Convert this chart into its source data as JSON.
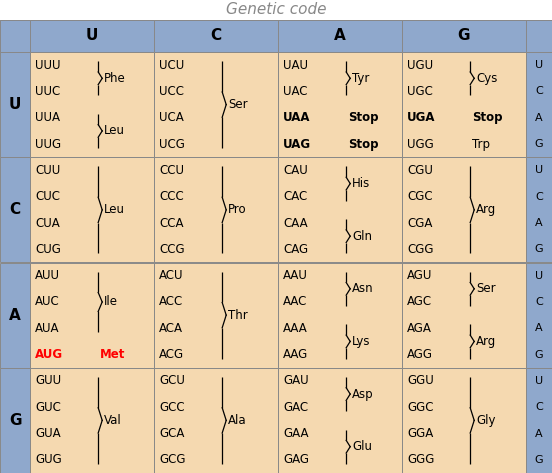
{
  "title": "Genetic code",
  "title_color": "#888888",
  "title_fontsize": 11,
  "header_bg": "#8fa8cc",
  "cell_bg": "#f5d9b0",
  "border_color": "#888888",
  "col_headers": [
    "U",
    "C",
    "A",
    "G"
  ],
  "row_headers": [
    "U",
    "C",
    "A",
    "G"
  ],
  "right_letters": [
    "U",
    "C",
    "A",
    "G"
  ],
  "cells": [
    [
      {
        "lines": [
          [
            "UUU",
            "}",
            "Phe"
          ],
          [
            "UUC",
            "}",
            ""
          ],
          [
            "UUA",
            "}",
            "Leu"
          ],
          [
            "UUG",
            "}",
            ""
          ]
        ],
        "braces": [
          [
            0,
            1,
            "Phe"
          ],
          [
            2,
            3,
            "Leu"
          ]
        ]
      },
      {
        "lines": [
          [
            "UCU",
            "}",
            ""
          ],
          [
            "UCC",
            "}",
            ""
          ],
          [
            "UCA",
            "}",
            "Ser"
          ],
          [
            "UCG",
            "}",
            ""
          ]
        ],
        "braces": [
          [
            0,
            3,
            "Ser"
          ]
        ]
      },
      {
        "lines": [
          [
            "UAU",
            "}",
            "Tyr"
          ],
          [
            "UAC",
            "}",
            ""
          ],
          [
            "UAA",
            "",
            "Stop"
          ],
          [
            "UAG",
            "",
            "Stop"
          ]
        ],
        "braces": [
          [
            0,
            1,
            "Tyr"
          ]
        ],
        "bold_lines": [
          2,
          3
        ],
        "stop_lines": [
          2,
          3
        ]
      },
      {
        "lines": [
          [
            "UGU",
            "}",
            "Cys"
          ],
          [
            "UGC",
            "}",
            ""
          ],
          [
            "UGA",
            "",
            "Stop"
          ],
          [
            "UGG",
            "",
            "Trp"
          ]
        ],
        "braces": [
          [
            0,
            1,
            "Cys"
          ]
        ],
        "bold_lines": [
          2
        ],
        "uga_stop": true
      }
    ],
    [
      {
        "lines": [
          [
            "CUU",
            "}",
            ""
          ],
          [
            "CUC",
            "}",
            ""
          ],
          [
            "CUA",
            "}",
            "Leu"
          ],
          [
            "CUG",
            "}",
            ""
          ]
        ],
        "braces": [
          [
            0,
            3,
            "Leu"
          ]
        ]
      },
      {
        "lines": [
          [
            "CCU",
            "}",
            ""
          ],
          [
            "CCC",
            "}",
            ""
          ],
          [
            "CCA",
            "}",
            "Pro"
          ],
          [
            "CCG",
            "}",
            ""
          ]
        ],
        "braces": [
          [
            0,
            3,
            "Pro"
          ]
        ]
      },
      {
        "lines": [
          [
            "CAU",
            "}",
            "His"
          ],
          [
            "CAC",
            "}",
            ""
          ],
          [
            "CAA",
            "}",
            "Gln"
          ],
          [
            "CAG",
            "}",
            ""
          ]
        ],
        "braces": [
          [
            0,
            1,
            "His"
          ],
          [
            2,
            3,
            "Gln"
          ]
        ]
      },
      {
        "lines": [
          [
            "CGU",
            "}",
            ""
          ],
          [
            "CGC",
            "}",
            ""
          ],
          [
            "CGA",
            "}",
            "Arg"
          ],
          [
            "CGG",
            "}",
            ""
          ]
        ],
        "braces": [
          [
            0,
            3,
            "Arg"
          ]
        ]
      }
    ],
    [
      {
        "lines": [
          [
            "AUU",
            "}",
            ""
          ],
          [
            "AUC",
            "}",
            "Ile"
          ],
          [
            "AUA",
            "}",
            ""
          ],
          [
            "AUG",
            "",
            "Met"
          ]
        ],
        "braces": [
          [
            0,
            2,
            "Ile"
          ]
        ],
        "aug_start": true
      },
      {
        "lines": [
          [
            "ACU",
            "}",
            ""
          ],
          [
            "ACC",
            "}",
            ""
          ],
          [
            "ACA",
            "}",
            "Thr"
          ],
          [
            "ACG",
            "}",
            ""
          ]
        ],
        "braces": [
          [
            0,
            3,
            "Thr"
          ]
        ]
      },
      {
        "lines": [
          [
            "AAU",
            "}",
            "Asn"
          ],
          [
            "AAC",
            "}",
            ""
          ],
          [
            "AAA",
            "}",
            "Lys"
          ],
          [
            "AAG",
            "}",
            ""
          ]
        ],
        "braces": [
          [
            0,
            1,
            "Asn"
          ],
          [
            2,
            3,
            "Lys"
          ]
        ]
      },
      {
        "lines": [
          [
            "AGU",
            "}",
            "Ser"
          ],
          [
            "AGC",
            "}",
            ""
          ],
          [
            "AGA",
            "}",
            "Arg"
          ],
          [
            "AGG",
            "}",
            ""
          ]
        ],
        "braces": [
          [
            0,
            1,
            "Ser"
          ],
          [
            2,
            3,
            "Arg"
          ]
        ]
      }
    ],
    [
      {
        "lines": [
          [
            "GUU",
            "}",
            ""
          ],
          [
            "GUC",
            "}",
            ""
          ],
          [
            "GUA",
            "}",
            "Val"
          ],
          [
            "GUG",
            "}",
            ""
          ]
        ],
        "braces": [
          [
            0,
            3,
            "Val"
          ]
        ]
      },
      {
        "lines": [
          [
            "GCU",
            "}",
            ""
          ],
          [
            "GCC",
            "}",
            ""
          ],
          [
            "GCA",
            "}",
            "Ala"
          ],
          [
            "GCG",
            "}",
            ""
          ]
        ],
        "braces": [
          [
            0,
            3,
            "Ala"
          ]
        ]
      },
      {
        "lines": [
          [
            "GAU",
            "}",
            "Asp"
          ],
          [
            "GAC",
            "}",
            ""
          ],
          [
            "GAA",
            "}",
            "Glu"
          ],
          [
            "GAG",
            "}",
            ""
          ]
        ],
        "braces": [
          [
            0,
            1,
            "Asp"
          ],
          [
            2,
            3,
            "Glu"
          ]
        ]
      },
      {
        "lines": [
          [
            "GGU",
            "}",
            ""
          ],
          [
            "GGC",
            "}",
            ""
          ],
          [
            "GGA",
            "}",
            "Gly"
          ],
          [
            "GGG",
            "}",
            ""
          ]
        ],
        "braces": [
          [
            0,
            3,
            "Gly"
          ]
        ]
      }
    ]
  ]
}
